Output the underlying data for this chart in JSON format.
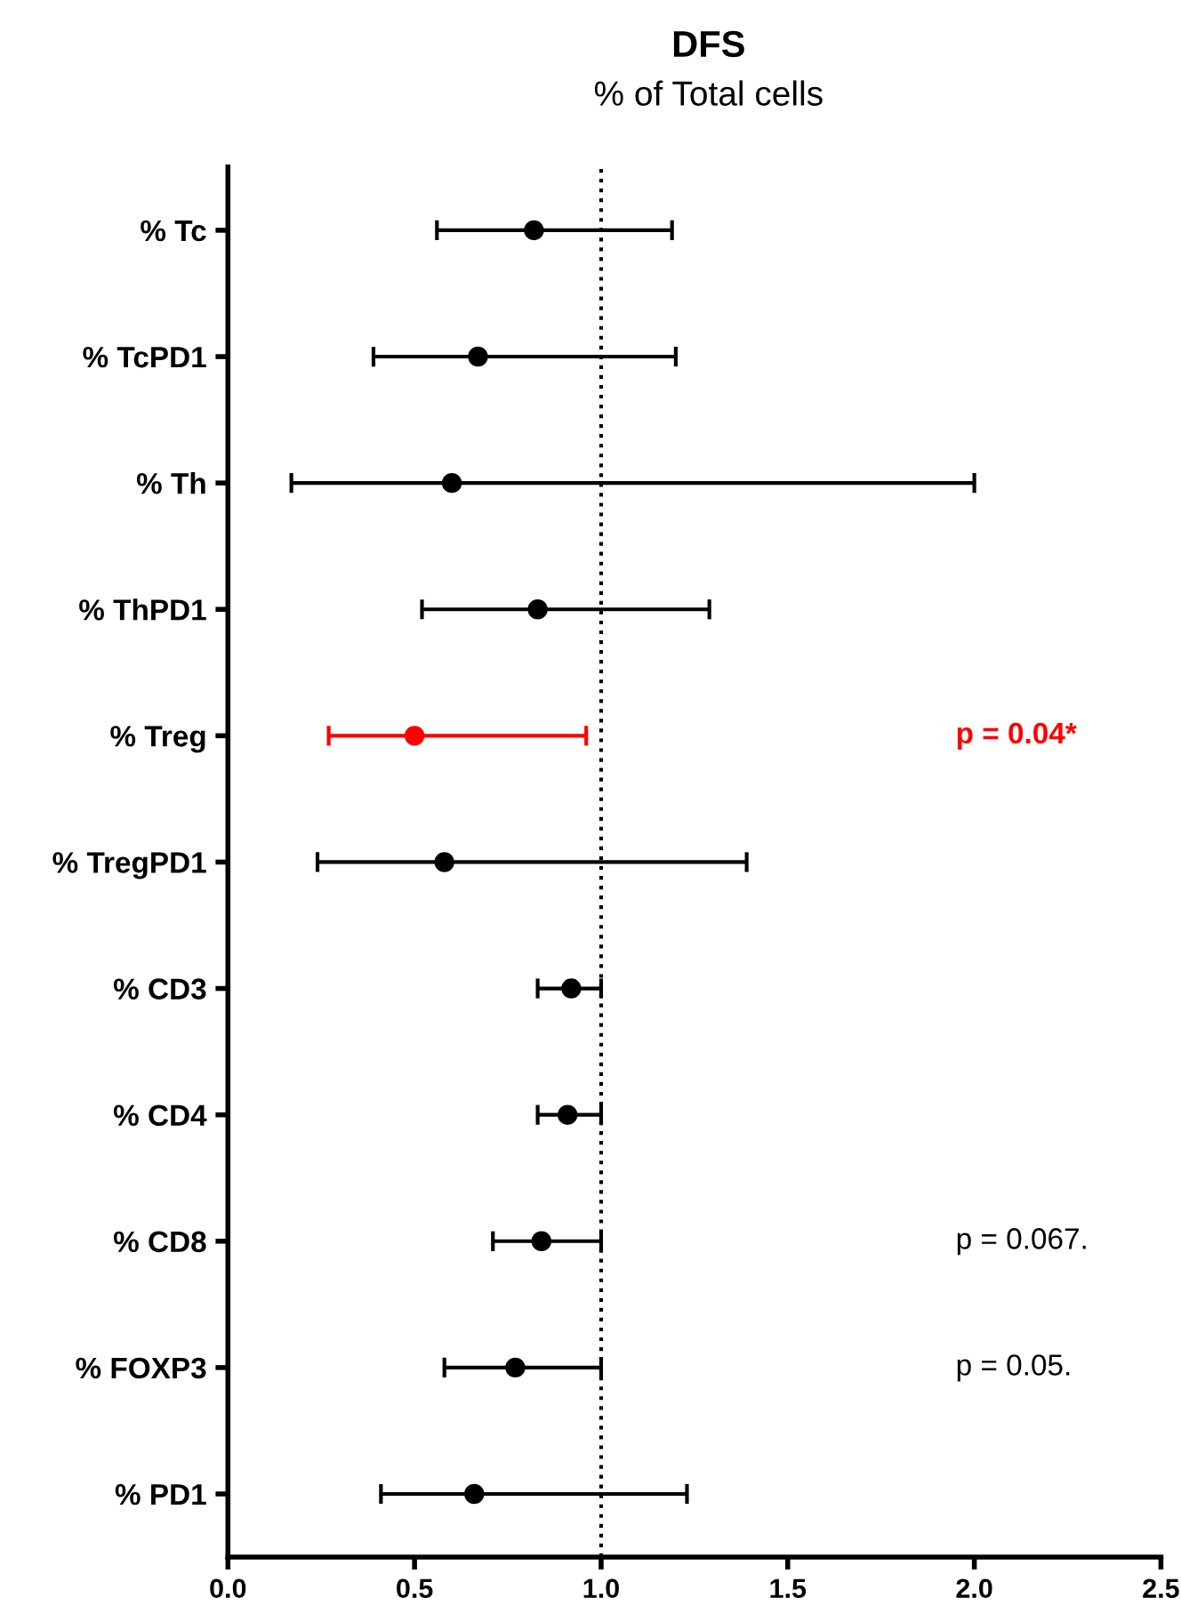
{
  "chart_data": {
    "type": "scatter",
    "orientation": "horizontal",
    "title": "DFS",
    "subtitle": "% of Total cells",
    "categories": [
      "% Tc",
      "% TcPD1",
      "% Th",
      "% ThPD1",
      "% Treg",
      "% TregPD1",
      "% CD3",
      "% CD4",
      "% CD8",
      "% FOXP3",
      "% PD1"
    ],
    "values": [
      0.82,
      0.67,
      0.6,
      0.83,
      0.5,
      0.58,
      0.92,
      0.91,
      0.84,
      0.77,
      0.66
    ],
    "errors": [
      [
        0.56,
        1.19
      ],
      [
        0.39,
        1.2
      ],
      [
        0.17,
        2.0
      ],
      [
        0.52,
        1.29
      ],
      [
        0.27,
        0.96
      ],
      [
        0.24,
        1.39
      ],
      [
        0.83,
        1.0
      ],
      [
        0.83,
        1.0
      ],
      [
        0.71,
        1.0
      ],
      [
        0.58,
        1.0
      ],
      [
        0.41,
        1.23
      ]
    ],
    "colors": [
      "#000000",
      "#000000",
      "#000000",
      "#000000",
      "#ff0000",
      "#000000",
      "#000000",
      "#000000",
      "#000000",
      "#000000",
      "#000000"
    ],
    "marker": "circle",
    "grid": false,
    "xlim": [
      0,
      2.5
    ],
    "xticks": [
      {
        "value": 0,
        "label": "0.0"
      },
      {
        "value": 0.5,
        "label": "0.5"
      },
      {
        "value": 1,
        "label": "1.0"
      },
      {
        "value": 1.5,
        "label": "1.5"
      },
      {
        "value": 2,
        "label": "2.0"
      },
      {
        "value": 2.5,
        "label": "2.5"
      }
    ],
    "ref_lines": [
      {
        "axis": "x",
        "value": 1,
        "line_style": "dotted",
        "color": "#000000"
      }
    ],
    "annotations": [
      "p = 0.04*",
      "p = 0.067.",
      "p = 0.05."
    ]
  }
}
